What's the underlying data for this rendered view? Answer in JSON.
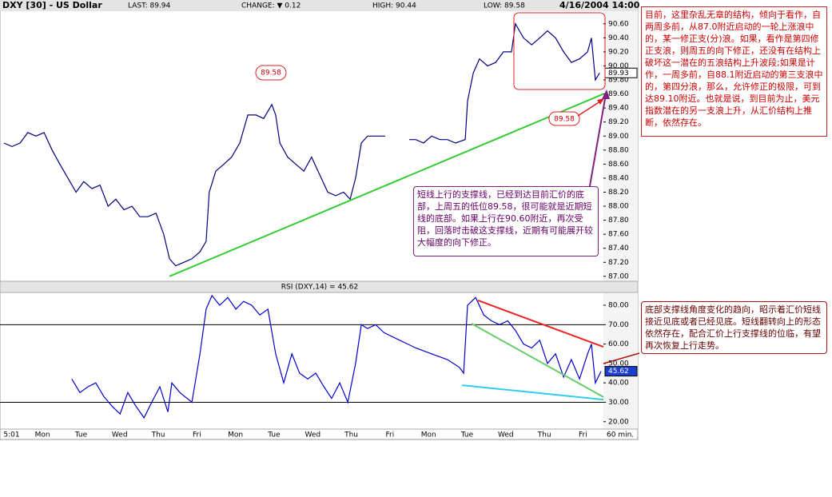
{
  "chart_data": [
    {
      "type": "line",
      "title": "DXY [30] - US Dollar",
      "stats": [
        "LAST: 89.94",
        "CHANGE: ▼ 0.12",
        "HIGH: 90.44",
        "LOW: 89.58"
      ],
      "date": "4/16/2004 14:00",
      "x": [
        0.0,
        0.21,
        0.42,
        0.62,
        0.83,
        1.04,
        1.25,
        1.45,
        1.66,
        1.87,
        2.07,
        2.28,
        2.49,
        2.7,
        2.9,
        3.11,
        3.32,
        3.52,
        3.73,
        3.94,
        4.14,
        4.29,
        4.45,
        4.66,
        4.87,
        5.08,
        5.24,
        5.32,
        5.49,
        5.7,
        5.9,
        6.11,
        6.32,
        6.53,
        6.73,
        6.94,
        7.04,
        7.15,
        7.35,
        7.56,
        7.77,
        7.97,
        8.18,
        8.39,
        8.6,
        8.8,
        8.97,
        9.11,
        9.26,
        9.42,
        9.63,
        9.88,
        10.19,
        10.5,
        10.67,
        10.87,
        11.08,
        11.29,
        11.49,
        11.7,
        11.95,
        12.01,
        12.16,
        12.32,
        12.53,
        12.74,
        12.94,
        13.15,
        13.25,
        13.46,
        13.67,
        13.88,
        14.08,
        14.29,
        14.5,
        14.7,
        14.91,
        15.12,
        15.22,
        15.32,
        15.43
      ],
      "series": [
        {
          "color": "#000080",
          "values": [
            88.9,
            88.85,
            88.9,
            89.05,
            89.0,
            89.05,
            88.8,
            88.6,
            88.4,
            88.2,
            88.35,
            88.25,
            88.3,
            88.0,
            88.1,
            87.95,
            88.0,
            87.85,
            87.85,
            87.9,
            87.6,
            87.25,
            87.15,
            87.2,
            87.25,
            87.35,
            87.5,
            88.2,
            88.5,
            88.6,
            88.7,
            88.9,
            89.3,
            89.3,
            89.25,
            89.45,
            89.3,
            88.9,
            88.7,
            88.6,
            88.5,
            88.7,
            88.45,
            88.2,
            88.15,
            88.2,
            88.1,
            88.4,
            88.9,
            89.0,
            89.0,
            89.0,
            null,
            88.95,
            88.95,
            88.9,
            89.0,
            88.95,
            88.95,
            88.9,
            88.95,
            89.5,
            89.9,
            90.1,
            90.0,
            90.05,
            90.2,
            90.2,
            90.6,
            90.4,
            90.3,
            90.4,
            90.5,
            90.4,
            90.2,
            90.05,
            90.1,
            90.2,
            90.4,
            89.8,
            89.9
          ]
        }
      ],
      "xlim": [
        -0.1,
        15.53
      ],
      "ylim": [
        86.93,
        90.78
      ],
      "yticks": [
        {
          "value": 87.0,
          "label": "87.00"
        },
        {
          "value": 87.2,
          "label": "87.20"
        },
        {
          "value": 87.4,
          "label": "87.40"
        },
        {
          "value": 87.6,
          "label": "87.60"
        },
        {
          "value": 87.8,
          "label": "87.80"
        },
        {
          "value": 88.0,
          "label": "88.00"
        },
        {
          "value": 88.2,
          "label": "88.20"
        },
        {
          "value": 88.4,
          "label": "88.40"
        },
        {
          "value": 88.6,
          "label": "88.60"
        },
        {
          "value": 88.8,
          "label": "88.80"
        },
        {
          "value": 89.0,
          "label": "89.00"
        },
        {
          "value": 89.2,
          "label": "89.20"
        },
        {
          "value": 89.4,
          "label": "89.40"
        },
        {
          "value": 89.6,
          "label": "89.60"
        },
        {
          "value": 89.8,
          "label": "89.80"
        },
        {
          "value": 90.0,
          "label": "90.00"
        },
        {
          "value": 90.2,
          "label": "90.20"
        },
        {
          "value": 90.4,
          "label": "90.40"
        },
        {
          "value": 90.6,
          "label": "90.60"
        }
      ],
      "trendlines": [
        {
          "color": "#33cc33",
          "points": [
            [
              4.29,
              87.0
            ],
            [
              15.53,
              89.6
            ]
          ]
        }
      ],
      "last_label": "89.93"
    },
    {
      "type": "line",
      "title": "RSI (DXY,14) = 45.62",
      "x": [
        1.76,
        1.97,
        2.18,
        2.38,
        2.59,
        2.8,
        3.01,
        3.21,
        3.42,
        3.63,
        3.83,
        4.04,
        4.25,
        4.35,
        4.56,
        4.87,
        5.08,
        5.24,
        5.39,
        5.59,
        5.8,
        6.01,
        6.21,
        6.42,
        6.63,
        6.84,
        7.04,
        7.25,
        7.46,
        7.66,
        7.87,
        8.08,
        8.29,
        8.49,
        8.7,
        8.91,
        9.11,
        9.26,
        9.42,
        9.63,
        9.84,
        9.94,
        10.25,
        10.67,
        11.08,
        11.49,
        11.8,
        11.91,
        12.01,
        12.22,
        12.43,
        12.63,
        12.84,
        13.05,
        13.25,
        13.46,
        13.67,
        13.88,
        14.08,
        14.29,
        14.5,
        14.7,
        14.91,
        15.12,
        15.22,
        15.32,
        15.47
      ],
      "series": [
        {
          "color": "#0000cc",
          "values": [
            42,
            35,
            38,
            40,
            33,
            28,
            24,
            35,
            28,
            22,
            30,
            38,
            25,
            40,
            35,
            30,
            55,
            78,
            85,
            80,
            84,
            78,
            82,
            80,
            75,
            78,
            55,
            40,
            55,
            45,
            42,
            45,
            38,
            32,
            40,
            30,
            50,
            70,
            68,
            70,
            66,
            65,
            62,
            58,
            55,
            52,
            48,
            45,
            80,
            84,
            75,
            72,
            70,
            72,
            67,
            60,
            58,
            62,
            50,
            55,
            43,
            52,
            42,
            55,
            60,
            40,
            46
          ]
        }
      ],
      "xlim": [
        -0.1,
        15.53
      ],
      "ylim": [
        16.2,
        86.6
      ],
      "yticks": [
        {
          "value": 20,
          "label": "20.00"
        },
        {
          "value": 30,
          "label": "30.00"
        },
        {
          "value": 40,
          "label": "40.00"
        },
        {
          "value": 50,
          "label": "50.00"
        },
        {
          "value": 60,
          "label": "60.00"
        },
        {
          "value": 70,
          "label": "70.00"
        },
        {
          "value": 80,
          "label": "80.00"
        }
      ],
      "ref_lines": [
        70,
        30
      ],
      "xticks": [
        {
          "value": 0.2,
          "label": "5:01"
        },
        {
          "value": 1,
          "label": "Mon"
        },
        {
          "value": 2,
          "label": "Tue"
        },
        {
          "value": 3,
          "label": "Wed"
        },
        {
          "value": 4,
          "label": "Thu"
        },
        {
          "value": 5,
          "label": "Fri"
        },
        {
          "value": 6,
          "label": "Mon"
        },
        {
          "value": 7,
          "label": "Tue"
        },
        {
          "value": 8,
          "label": "Wed"
        },
        {
          "value": 9,
          "label": "Thu"
        },
        {
          "value": 10,
          "label": "Fri"
        },
        {
          "value": 11,
          "label": "Mon"
        },
        {
          "value": 12,
          "label": "Tue"
        },
        {
          "value": 13,
          "label": "Wed"
        },
        {
          "value": 14,
          "label": "Thu"
        },
        {
          "value": 15,
          "label": "Fri"
        }
      ],
      "xlabel": "60 min.",
      "trendlines": [
        {
          "color": "#ee2222",
          "points": [
            [
              12.28,
              82.5
            ],
            [
              15.53,
              58.6
            ]
          ]
        },
        {
          "color": "#66cc66",
          "points": [
            [
              12.12,
              70.5
            ],
            [
              15.53,
              32.7
            ]
          ]
        },
        {
          "color": "#33ccee",
          "points": [
            [
              11.87,
              38.8
            ],
            [
              15.53,
              31.4
            ]
          ]
        }
      ],
      "last_label": "45.62"
    }
  ],
  "annotations": {
    "price_note": "目前，这里杂乱无章的结构，倾向于看作，自两周多前，从87.0附近启动的一轮上涨浪中的，某一修正支(分)浪。如果，看作是第四修正支浪，则周五的向下修正，还没有在结构上破坏这一潜在的五浪结构上升波段;如果是计作，一周多前，自88.1附近启动的第三支浪中的，第四分浪，那么，允许修正的极限，可到达89.10附近。也就是说，到目前为止，美元指数潜在的另一支浪上升，从汇价结构上推断，依然存在。",
    "support_note": "短线上行的支撑线，已经到达目前汇价的底部，上周五的低位89.58，很可能就是近期短线的底部。如果上行在90.60附近，再次受阻，回落时击破这支撑线，近期有可能展开较大幅度的向下修正。",
    "rsi_note": "底部支撑线角度变化的趋向，昭示着汇价短线接近见底或者已经见底。短线翻转向上的形态依然存在，配合汇价上行支撑线的位临，有望再次恢复上行走势。",
    "low_tag_left": "89.58",
    "low_tag_right": "89.58"
  }
}
